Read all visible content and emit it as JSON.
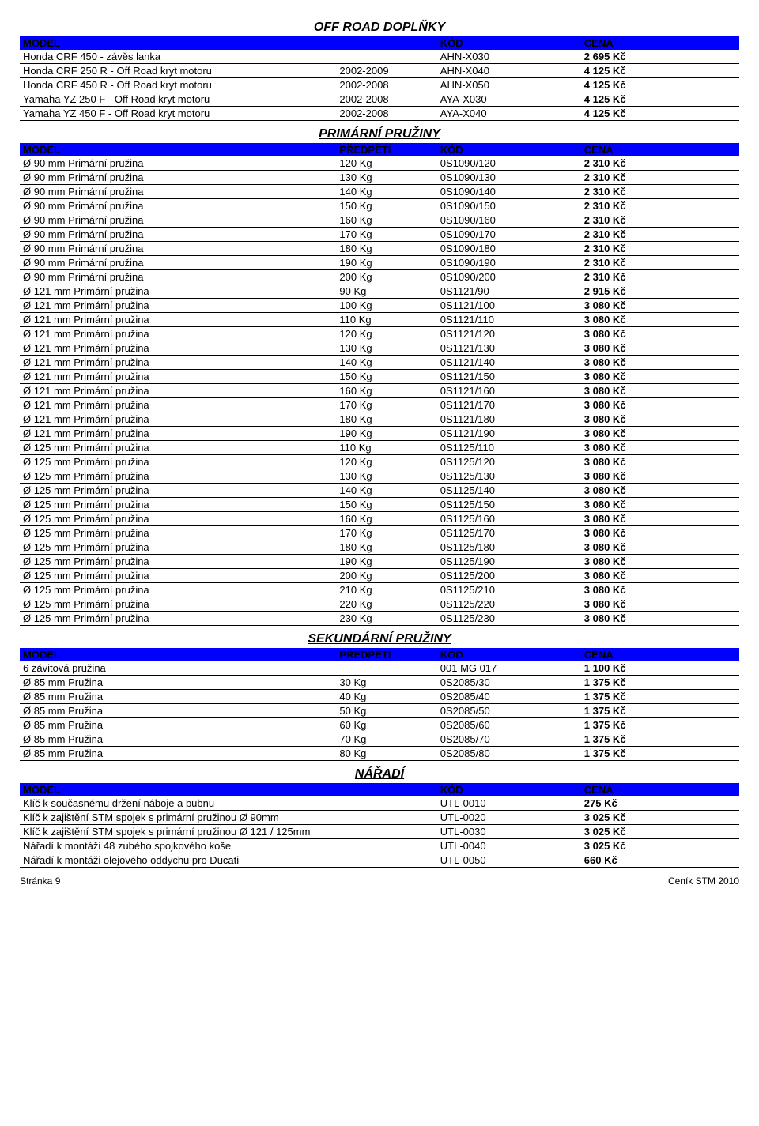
{
  "sections": [
    {
      "title": "OFF ROAD  DOPLŇKY",
      "header": [
        "MODEL",
        "",
        "KÓD",
        "CENA"
      ],
      "cols": 4,
      "col2_hidden": true,
      "rows": [
        [
          "Honda CRF 450 - závěs lanka",
          "",
          "AHN-X030",
          "2 695 Kč"
        ],
        [
          "Honda CRF 250 R - Off Road kryt motoru",
          "2002-2009",
          "AHN-X040",
          "4 125 Kč"
        ],
        [
          "Honda CRF 450 R - Off Road kryt motoru",
          "2002-2008",
          "AHN-X050",
          "4 125 Kč"
        ],
        [
          "Yamaha YZ 250 F - Off Road kryt motoru",
          "2002-2008",
          "AYA-X030",
          "4 125 Kč"
        ],
        [
          "Yamaha YZ 450 F - Off Road kryt motoru",
          "2002-2008",
          "AYA-X040",
          "4 125 Kč"
        ]
      ]
    },
    {
      "title": "PRIMÁRNÍ  PRUŽINY",
      "header": [
        "MODEL",
        "PŘEDPĚTÍ",
        "KÓD",
        "CENA"
      ],
      "cols": 4,
      "rows": [
        [
          "Ø 90 mm Primární pružina",
          "120 Kg",
          "0S1090/120",
          "2 310 Kč"
        ],
        [
          "Ø 90 mm Primární pružina",
          "130 Kg",
          "0S1090/130",
          "2 310 Kč"
        ],
        [
          "Ø 90 mm Primární pružina",
          "140 Kg",
          "0S1090/140",
          "2 310 Kč"
        ],
        [
          "Ø 90 mm Primární pružina",
          "150 Kg",
          "0S1090/150",
          "2 310 Kč"
        ],
        [
          "Ø 90 mm Primární pružina",
          "160 Kg",
          "0S1090/160",
          "2 310 Kč"
        ],
        [
          "Ø 90 mm Primární pružina",
          "170 Kg",
          "0S1090/170",
          "2 310 Kč"
        ],
        [
          "Ø 90 mm Primární pružina",
          "180 Kg",
          "0S1090/180",
          "2 310 Kč"
        ],
        [
          "Ø 90 mm Primární pružina",
          "190 Kg",
          "0S1090/190",
          "2 310 Kč"
        ],
        [
          "Ø 90 mm Primární pružina",
          "200 Kg",
          "0S1090/200",
          "2 310 Kč"
        ],
        [
          "Ø 121 mm Primární pružina",
          "90 Kg",
          "0S1121/90",
          "2 915 Kč"
        ],
        [
          "Ø 121 mm Primární pružina",
          "100 Kg",
          "0S1121/100",
          "3 080 Kč"
        ],
        [
          "Ø 121 mm Primární pružina",
          "110 Kg",
          "0S1121/110",
          "3 080 Kč"
        ],
        [
          "Ø 121 mm Primární pružina",
          "120 Kg",
          "0S1121/120",
          "3 080 Kč"
        ],
        [
          "Ø 121 mm Primární pružina",
          "130 Kg",
          "0S1121/130",
          "3 080 Kč"
        ],
        [
          "Ø 121 mm Primární pružina",
          "140 Kg",
          "0S1121/140",
          "3 080 Kč"
        ],
        [
          "Ø 121 mm Primární pružina",
          "150 Kg",
          "0S1121/150",
          "3 080 Kč"
        ],
        [
          "Ø 121 mm Primární pružina",
          "160 Kg",
          "0S1121/160",
          "3 080 Kč"
        ],
        [
          "Ø 121 mm Primární pružina",
          "170 Kg",
          "0S1121/170",
          "3 080 Kč"
        ],
        [
          "Ø 121 mm Primární pružina",
          "180 Kg",
          "0S1121/180",
          "3 080 Kč"
        ],
        [
          "Ø 121 mm Primární pružina",
          "190 Kg",
          "0S1121/190",
          "3 080 Kč"
        ],
        [
          "Ø 125 mm Primární pružina",
          "110 Kg",
          "0S1125/110",
          "3 080 Kč"
        ],
        [
          "Ø 125 mm Primární pružina",
          "120 Kg",
          "0S1125/120",
          "3 080 Kč"
        ],
        [
          "Ø 125 mm Primární pružina",
          "130 Kg",
          "0S1125/130",
          "3 080 Kč"
        ],
        [
          "Ø 125 mm Primární pružina",
          "140 Kg",
          "0S1125/140",
          "3 080 Kč"
        ],
        [
          "Ø 125 mm Primární pružina",
          "150 Kg",
          "0S1125/150",
          "3 080 Kč"
        ],
        [
          "Ø 125 mm Primární pružina",
          "160 Kg",
          "0S1125/160",
          "3 080 Kč"
        ],
        [
          "Ø 125 mm Primární pružina",
          "170 Kg",
          "0S1125/170",
          "3 080 Kč"
        ],
        [
          "Ø 125 mm Primární pružina",
          "180 Kg",
          "0S1125/180",
          "3 080 Kč"
        ],
        [
          "Ø 125 mm Primární pružina",
          "190 Kg",
          "0S1125/190",
          "3 080 Kč"
        ],
        [
          "Ø 125 mm Primární pružina",
          "200 Kg",
          "0S1125/200",
          "3 080 Kč"
        ],
        [
          "Ø 125 mm Primární pružina",
          "210 Kg",
          "0S1125/210",
          "3 080 Kč"
        ],
        [
          "Ø 125 mm Primární pružina",
          "220 Kg",
          "0S1125/220",
          "3 080 Kč"
        ],
        [
          "Ø 125 mm Primární pružina",
          "230 Kg",
          "0S1125/230",
          "3 080 Kč"
        ]
      ]
    },
    {
      "title": "SEKUNDÁRNÍ  PRUŽINY",
      "header": [
        "MODEL",
        "PŘEDPĚTÍ",
        "KÓD",
        "CENA"
      ],
      "cols": 4,
      "rows": [
        [
          "6 závitová pružina",
          "",
          "001 MG 017",
          "1 100 Kč"
        ],
        [
          "Ø 85 mm Pružina",
          "30 Kg",
          "0S2085/30",
          "1 375 Kč"
        ],
        [
          "Ø 85 mm Pružina",
          "40 Kg",
          "0S2085/40",
          "1 375 Kč"
        ],
        [
          "Ø 85 mm Pružina",
          "50 Kg",
          "0S2085/50",
          "1 375 Kč"
        ],
        [
          "Ø 85 mm Pružina",
          "60 Kg",
          "0S2085/60",
          "1 375 Kč"
        ],
        [
          "Ø 85 mm Pružina",
          "70 Kg",
          "0S2085/70",
          "1 375 Kč"
        ],
        [
          "Ø 85 mm Pružina",
          "80 Kg",
          "0S2085/80",
          "1 375 Kč"
        ]
      ]
    },
    {
      "title": "NÁŘADÍ",
      "header": [
        "MODEL",
        "",
        "KÓD",
        "CENA"
      ],
      "cols": 4,
      "col2_hidden": true,
      "rows": [
        [
          "Klíč k současnému držení náboje a  bubnu",
          "",
          "UTL-0010",
          "275 Kč"
        ],
        [
          "Klíč k zajištění STM spojek s primární pružinou Ø 90mm",
          "",
          "UTL-0020",
          "3 025 Kč"
        ],
        [
          "Klíč k zajištění STM spojek s primární pružinou Ø 121 / 125mm",
          "",
          "UTL-0030",
          "3 025 Kč"
        ],
        [
          "Nářadí k montáži 48 zubého spojkového koše",
          "",
          "UTL-0040",
          "3 025 Kč"
        ],
        [
          "Nářadí k montáži olejového oddychu pro Ducati",
          "",
          "UTL-0050",
          "660 Kč"
        ]
      ]
    }
  ],
  "footer": {
    "left": "Stránka 9",
    "right": "Ceník STM 2010"
  }
}
